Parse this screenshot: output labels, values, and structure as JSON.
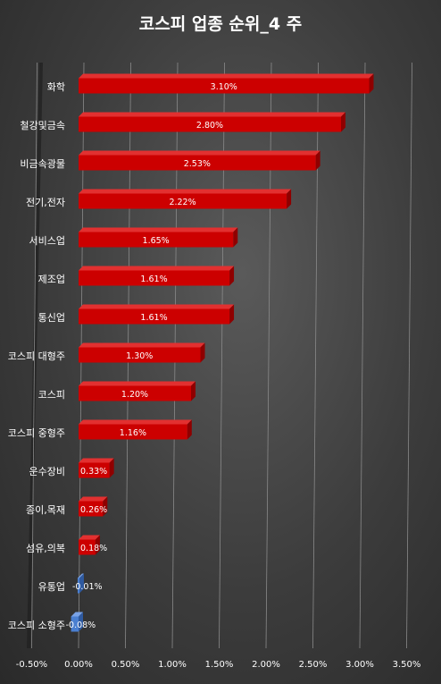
{
  "chart_data": {
    "type": "bar",
    "orientation": "horizontal",
    "title": "코스피 업종 순위_4 주",
    "categories": [
      "화학",
      "철강및금속",
      "비금속광물",
      "전기,전자",
      "서비스업",
      "제조업",
      "통신업",
      "코스피 대형주",
      "코스피",
      "코스피 중형주",
      "운수장비",
      "종이,목재",
      "섬유,의복",
      "유통업",
      "코스피 소형주"
    ],
    "values": [
      3.1,
      2.8,
      2.53,
      2.22,
      1.65,
      1.61,
      1.61,
      1.3,
      1.2,
      1.16,
      0.33,
      0.26,
      0.18,
      -0.01,
      -0.08
    ],
    "data_labels": [
      "3.10%",
      "2.80%",
      "2.53%",
      "2.22%",
      "1.65%",
      "1.61%",
      "1.61%",
      "1.30%",
      "1.20%",
      "1.16%",
      "0.33%",
      "0.26%",
      "0.18%",
      "-0.01%",
      "-0.08%"
    ],
    "x_ticks": [
      "-0.50%",
      "0.00%",
      "0.50%",
      "1.00%",
      "1.50%",
      "2.00%",
      "2.50%",
      "3.00%",
      "3.50%"
    ],
    "xlim": [
      -0.5,
      3.5
    ],
    "grid": "vertical",
    "legend": "none",
    "colors": {
      "positive": "#cc0000",
      "negative": "#4a7fd0",
      "background": "#3c3c3c",
      "text": "#ffffff"
    }
  }
}
